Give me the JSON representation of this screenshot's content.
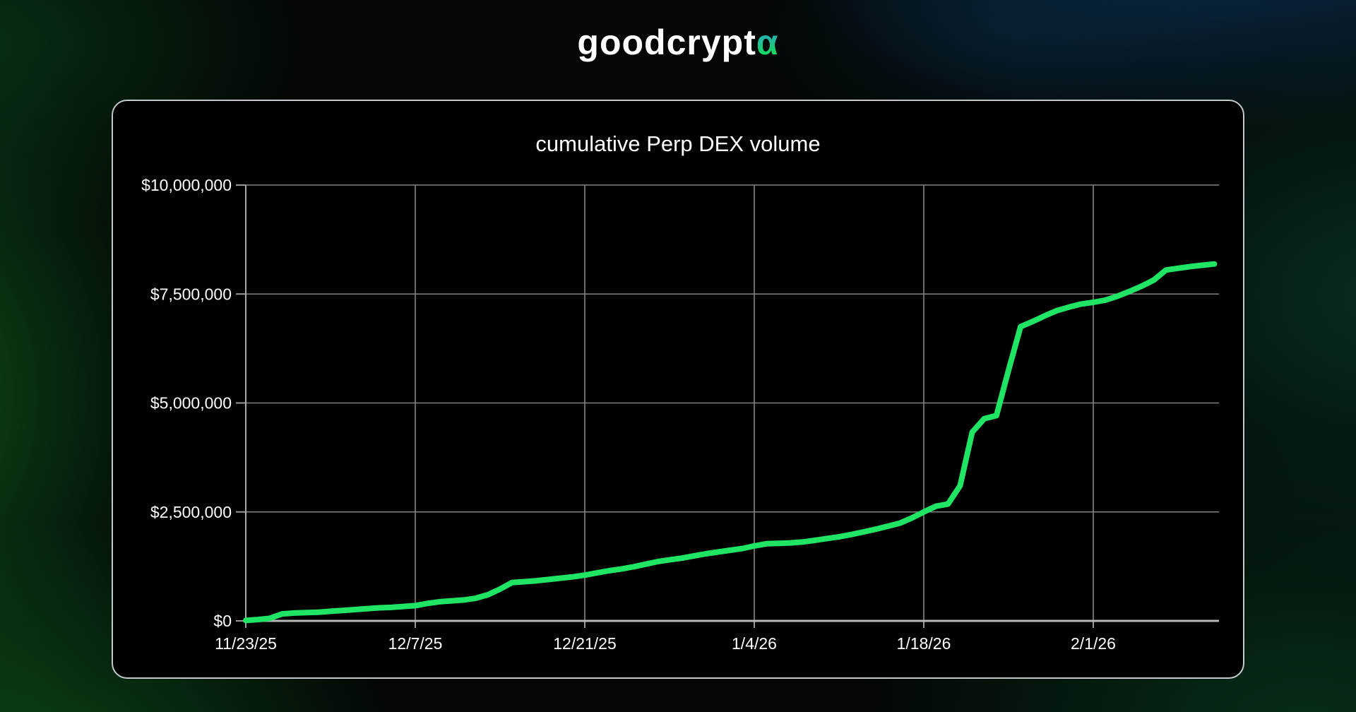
{
  "logo": {
    "text": "goodcrypt",
    "alpha": "α"
  },
  "chart_data": {
    "type": "line",
    "title": "cumulative Perp DEX volume",
    "xlabel": "",
    "ylabel": "",
    "grid": true,
    "legend": "none",
    "ylim": [
      0,
      10000000
    ],
    "x_range_days": [
      0,
      80
    ],
    "line_color": "#1fe464",
    "grid_color": "#848484",
    "axis_color": "#b8b8b8",
    "label_color": "#ffffff",
    "y_ticks": [
      {
        "label": "$0",
        "value": 0
      },
      {
        "label": "$2,500,000",
        "value": 2500000
      },
      {
        "label": "$5,000,000",
        "value": 5000000
      },
      {
        "label": "$7,500,000",
        "value": 7500000
      },
      {
        "label": "$10,000,000",
        "value": 10000000
      }
    ],
    "x_ticks": [
      {
        "label": "11/23/25",
        "day": 0
      },
      {
        "label": "12/7/25",
        "day": 14
      },
      {
        "label": "12/21/25",
        "day": 28
      },
      {
        "label": "1/4/26",
        "day": 42
      },
      {
        "label": "1/18/26",
        "day": 56
      },
      {
        "label": "2/1/26",
        "day": 70
      }
    ],
    "series": [
      {
        "name": "Cumulative Perp DEX volume (USD)",
        "start_date": "11/23/25",
        "interval": "daily",
        "values": [
          10000,
          30000,
          60000,
          160000,
          180000,
          190000,
          200000,
          220000,
          240000,
          260000,
          280000,
          300000,
          310000,
          330000,
          350000,
          400000,
          440000,
          460000,
          480000,
          520000,
          600000,
          730000,
          880000,
          900000,
          920000,
          950000,
          980000,
          1010000,
          1050000,
          1100000,
          1150000,
          1190000,
          1240000,
          1300000,
          1360000,
          1400000,
          1440000,
          1490000,
          1540000,
          1580000,
          1620000,
          1660000,
          1720000,
          1770000,
          1780000,
          1790000,
          1810000,
          1850000,
          1890000,
          1930000,
          1980000,
          2040000,
          2100000,
          2170000,
          2240000,
          2360000,
          2500000,
          2630000,
          2680000,
          3100000,
          4330000,
          4640000,
          4710000,
          5750000,
          6750000,
          6870000,
          7000000,
          7120000,
          7200000,
          7270000,
          7310000,
          7360000,
          7450000,
          7560000,
          7680000,
          7820000,
          8050000,
          8090000,
          8130000,
          8160000,
          8190000
        ]
      }
    ]
  }
}
